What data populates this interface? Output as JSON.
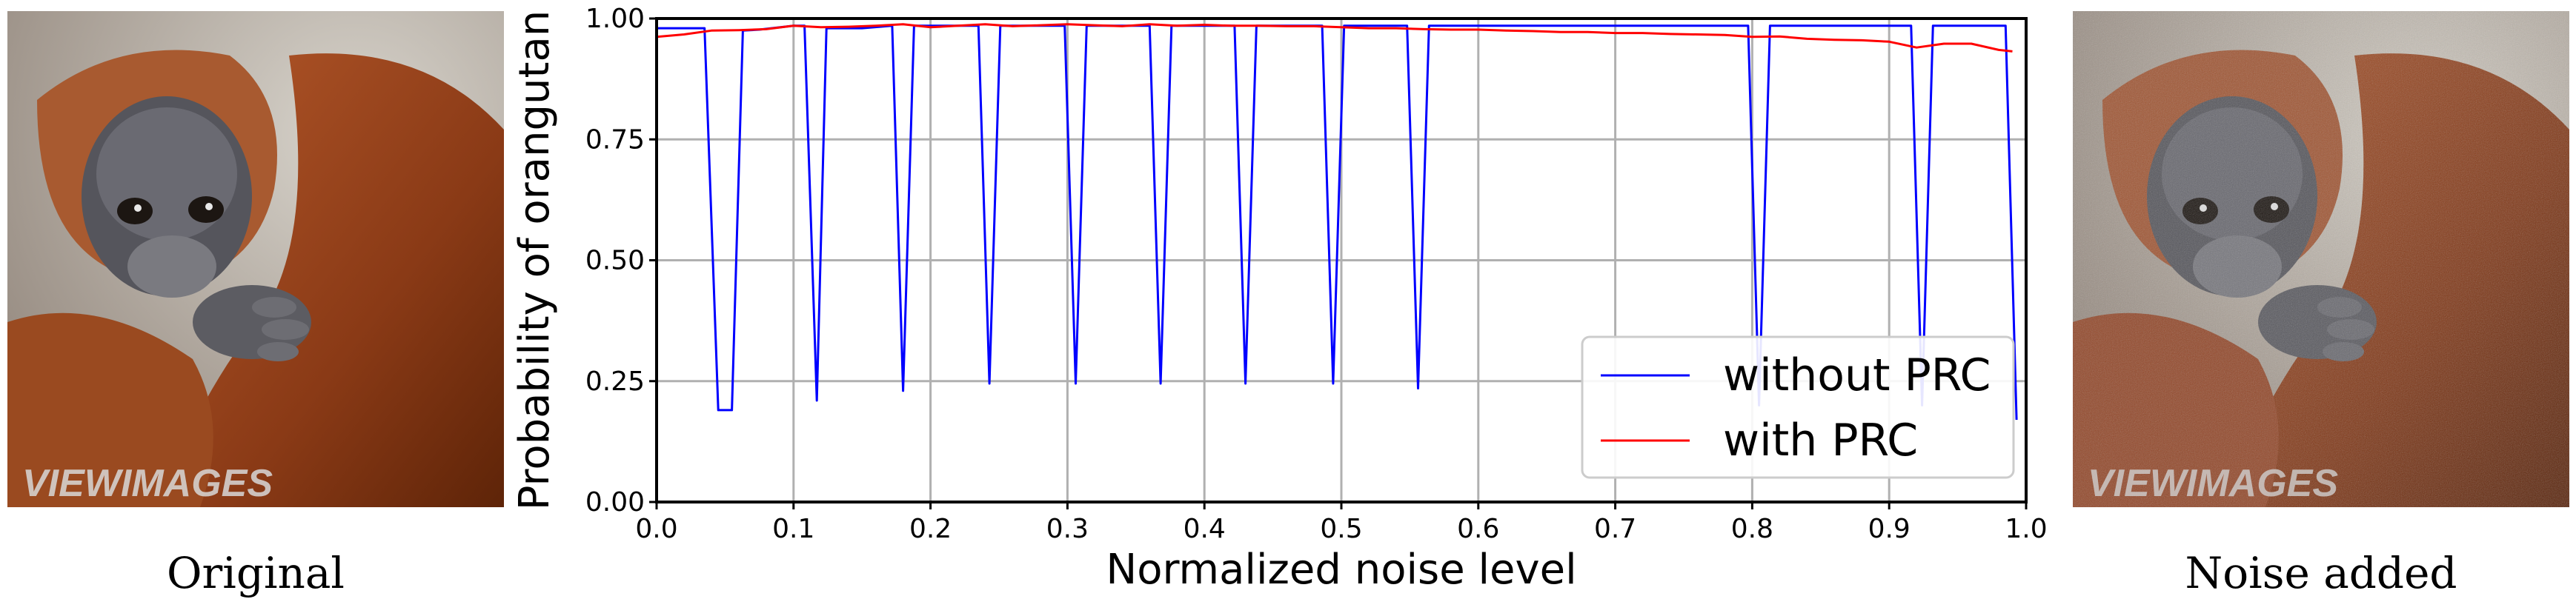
{
  "images": {
    "left": {
      "caption": "Original",
      "watermark": "VIEWIMAGES"
    },
    "right": {
      "caption": "Noise added",
      "watermark": "VIEWIMAGES"
    }
  },
  "colors": {
    "without": "#0000ff",
    "with": "#ff0000",
    "grid": "#b0b0b0"
  },
  "chart_data": {
    "type": "line",
    "title": "",
    "xlabel": "Normalized noise level",
    "ylabel": "Probability of orangutan",
    "xlim": [
      0.0,
      1.0
    ],
    "ylim": [
      0.0,
      1.0
    ],
    "xticks": [
      "0.0",
      "0.1",
      "0.2",
      "0.3",
      "0.4",
      "0.5",
      "0.6",
      "0.7",
      "0.8",
      "0.9",
      "1.0"
    ],
    "yticks": [
      "0.00",
      "0.25",
      "0.50",
      "0.75",
      "1.00"
    ],
    "grid": true,
    "legend_position": "lower-right",
    "series": [
      {
        "name": "without PRC",
        "color": "#0000ff",
        "x": [
          0.0,
          0.035,
          0.045,
          0.055,
          0.063,
          0.075,
          0.1,
          0.108,
          0.117,
          0.124,
          0.15,
          0.172,
          0.18,
          0.188,
          0.2,
          0.235,
          0.243,
          0.251,
          0.27,
          0.298,
          0.306,
          0.314,
          0.33,
          0.36,
          0.368,
          0.376,
          0.4,
          0.422,
          0.43,
          0.438,
          0.46,
          0.486,
          0.494,
          0.502,
          0.52,
          0.548,
          0.556,
          0.564,
          0.6,
          0.7,
          0.797,
          0.805,
          0.813,
          0.85,
          0.916,
          0.924,
          0.932,
          0.94,
          0.96,
          0.98,
          0.985,
          0.993
        ],
        "y": [
          0.98,
          0.98,
          0.19,
          0.19,
          0.975,
          0.977,
          0.985,
          0.985,
          0.21,
          0.98,
          0.98,
          0.985,
          0.23,
          0.985,
          0.985,
          0.985,
          0.245,
          0.985,
          0.985,
          0.985,
          0.245,
          0.985,
          0.985,
          0.985,
          0.245,
          0.985,
          0.985,
          0.985,
          0.245,
          0.985,
          0.985,
          0.985,
          0.245,
          0.985,
          0.985,
          0.985,
          0.235,
          0.985,
          0.985,
          0.985,
          0.985,
          0.2,
          0.985,
          0.985,
          0.985,
          0.2,
          0.985,
          0.985,
          0.985,
          0.985,
          0.985,
          0.17
        ]
      },
      {
        "name": "with PRC",
        "color": "#ff0000",
        "x": [
          0.0,
          0.02,
          0.04,
          0.06,
          0.08,
          0.1,
          0.12,
          0.14,
          0.16,
          0.18,
          0.2,
          0.22,
          0.24,
          0.26,
          0.28,
          0.3,
          0.32,
          0.34,
          0.36,
          0.38,
          0.4,
          0.42,
          0.44,
          0.46,
          0.48,
          0.5,
          0.52,
          0.54,
          0.56,
          0.58,
          0.6,
          0.62,
          0.64,
          0.66,
          0.68,
          0.7,
          0.72,
          0.74,
          0.76,
          0.78,
          0.8,
          0.82,
          0.84,
          0.86,
          0.88,
          0.9,
          0.92,
          0.94,
          0.96,
          0.98,
          0.99
        ],
        "y": [
          0.962,
          0.967,
          0.975,
          0.976,
          0.978,
          0.985,
          0.982,
          0.983,
          0.985,
          0.988,
          0.982,
          0.985,
          0.988,
          0.984,
          0.986,
          0.988,
          0.986,
          0.984,
          0.988,
          0.985,
          0.987,
          0.985,
          0.985,
          0.984,
          0.984,
          0.982,
          0.98,
          0.98,
          0.978,
          0.977,
          0.977,
          0.975,
          0.974,
          0.972,
          0.972,
          0.97,
          0.97,
          0.968,
          0.967,
          0.966,
          0.962,
          0.963,
          0.958,
          0.956,
          0.955,
          0.952,
          0.94,
          0.948,
          0.948,
          0.935,
          0.932
        ]
      }
    ]
  }
}
